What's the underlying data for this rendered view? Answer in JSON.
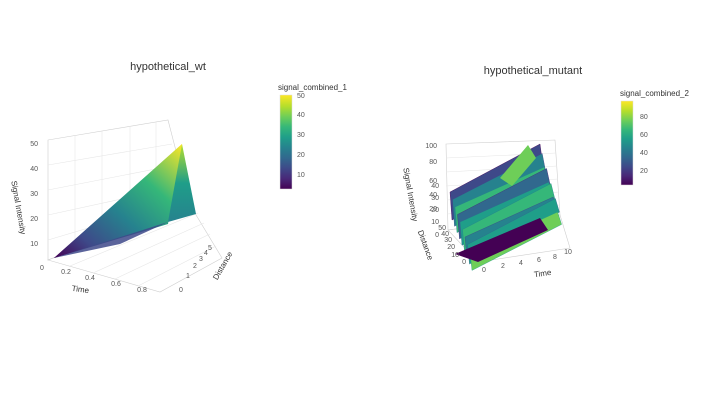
{
  "chart_data": [
    {
      "type": "surface",
      "title": "hypothetical_wt",
      "xlabel": "Time",
      "ylabel": "Distance",
      "zlabel": "Signal Intensity",
      "x_ticks": [
        "0",
        "0.2",
        "0.4",
        "0.6",
        "0.8"
      ],
      "y_ticks": [
        "0",
        "1",
        "2",
        "3",
        "4",
        "5"
      ],
      "z_ticks": [
        "10",
        "20",
        "30",
        "40",
        "50"
      ],
      "zlim": [
        0,
        50
      ],
      "colorbar": {
        "title": "signal_combined_1",
        "ticks": [
          "50",
          "40",
          "30",
          "20",
          "10"
        ],
        "range": [
          2,
          50
        ]
      },
      "shape": "wedge",
      "peak_value": 50,
      "colorscale": "viridis"
    },
    {
      "type": "surface",
      "title": "hypothetical_mutant",
      "xlabel": "Time",
      "ylabel": "Distance",
      "zlabel": "Signal Intensity",
      "x_ticks": [
        "0",
        "2",
        "4",
        "6",
        "8",
        "10"
      ],
      "y_ticks": [
        "0",
        "10",
        "20",
        "30",
        "40",
        "50"
      ],
      "z_ticks": [
        "0",
        "10",
        "20",
        "30",
        "40",
        "50",
        "60",
        "70",
        "80",
        "90",
        "100"
      ],
      "zlim": [
        0,
        100
      ],
      "colorbar": {
        "title": "signal_combined_2",
        "ticks": [
          "80",
          "60",
          "40",
          "20"
        ],
        "range": [
          0,
          95
        ]
      },
      "shape": "oscillating",
      "peak_value": 95,
      "colorscale": "viridis"
    }
  ],
  "colors": {
    "viridis": [
      "#440154",
      "#482878",
      "#3e4989",
      "#31688e",
      "#26828e",
      "#1f9e89",
      "#35b779",
      "#6ece58",
      "#b5de2b",
      "#fde725"
    ]
  }
}
